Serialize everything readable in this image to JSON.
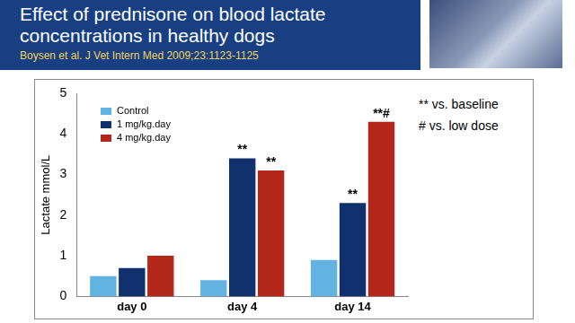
{
  "chart_data": {
    "type": "bar",
    "title": "Effect of prednisone on blood lactate concentrations in healthy dogs",
    "subtitle": "Boysen et al. J Vet Intern Med 2009;23:1123-1125",
    "y_label": "Lactate mmol/L",
    "categories": [
      "day 0",
      "day 4",
      "day 14"
    ],
    "series": [
      {
        "name": "Control",
        "color": "#62b2e2",
        "values": [
          0.5,
          0.4,
          0.9
        ]
      },
      {
        "name": "1 mg/kg.day",
        "color": "#11306e",
        "values": [
          0.7,
          3.4,
          2.3
        ]
      },
      {
        "name": "4 mg/kg.day",
        "color": "#b3281b",
        "values": [
          1.0,
          3.1,
          4.3
        ]
      }
    ],
    "annotations": [
      {
        "series": "1 mg/kg.day",
        "category": "day 4",
        "text": "**"
      },
      {
        "series": "4 mg/kg.day",
        "category": "day 4",
        "text": "**"
      },
      {
        "series": "1 mg/kg.day",
        "category": "day 14",
        "text": "**"
      },
      {
        "series": "4 mg/kg.day",
        "category": "day 14",
        "text": "**#"
      }
    ],
    "notes": [
      "** vs. baseline",
      "# vs. low dose"
    ],
    "ylim": [
      0,
      5
    ],
    "yticks": [
      0,
      1,
      2,
      3,
      4,
      5
    ],
    "grid": false,
    "legend": "top-left"
  }
}
